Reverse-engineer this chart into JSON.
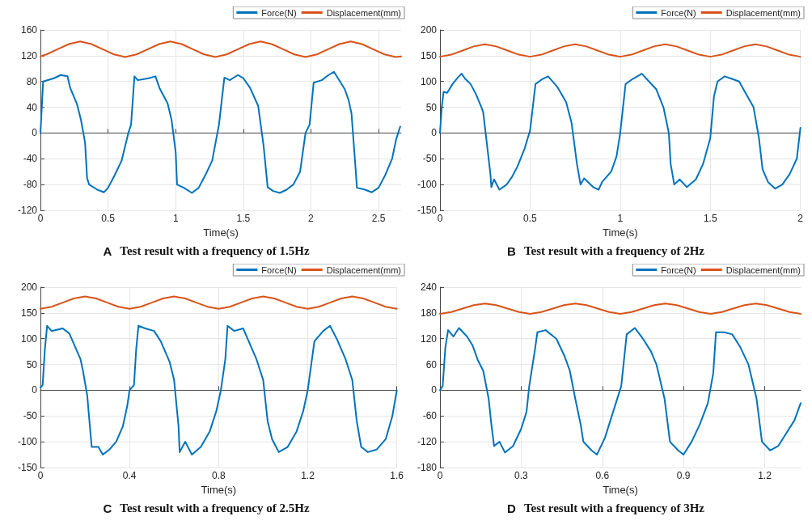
{
  "chart_data": [
    {
      "type": "line",
      "title": "A Test result with a frequency of 1.5Hz",
      "xlabel": "Time(s)",
      "xlim": [
        0,
        2.667
      ],
      "xticks": [
        0,
        0.5,
        1,
        1.5,
        2,
        2.5
      ],
      "ylim": [
        -120,
        160
      ],
      "yticks": [
        -120,
        -80,
        -40,
        0,
        40,
        80,
        120,
        160
      ],
      "grid": true,
      "legend": "top right",
      "marker": "none",
      "line_style": "solid",
      "series": [
        {
          "name": "Force(N)",
          "color": "#0072bd",
          "x": [
            0,
            0.02,
            0.1,
            0.15,
            0.2,
            0.22,
            0.27,
            0.3,
            0.33,
            0.345,
            0.36,
            0.42,
            0.47,
            0.5,
            0.55,
            0.6,
            0.65,
            0.67,
            0.695,
            0.72,
            0.8,
            0.85,
            0.88,
            0.94,
            0.97,
            1.0,
            1.01,
            1.06,
            1.12,
            1.17,
            1.22,
            1.27,
            1.32,
            1.36,
            1.4,
            1.46,
            1.5,
            1.55,
            1.61,
            1.65,
            1.68,
            1.72,
            1.77,
            1.82,
            1.87,
            1.92,
            1.96,
            1.99,
            2.02,
            2.08,
            2.13,
            2.17,
            2.2,
            2.25,
            2.28,
            2.3,
            2.33,
            2.34,
            2.4,
            2.45,
            2.5,
            2.55,
            2.6,
            2.63,
            2.66
          ],
          "values": [
            0,
            80,
            85,
            90,
            88,
            70,
            45,
            20,
            -15,
            -70,
            -80,
            -88,
            -92,
            -85,
            -65,
            -43,
            0,
            13,
            88,
            82,
            85,
            88,
            70,
            46,
            20,
            -30,
            -80,
            -85,
            -93,
            -85,
            -65,
            -43,
            13,
            86,
            82,
            90,
            85,
            70,
            42,
            -20,
            -84,
            -90,
            -93,
            -88,
            -80,
            -60,
            0,
            13,
            78,
            82,
            90,
            95,
            85,
            68,
            50,
            30,
            -55,
            -85,
            -88,
            -92,
            -85,
            -65,
            -40,
            -10,
            10
          ]
        },
        {
          "name": "Displacement(mm)",
          "color": "#d95319",
          "x": [
            0,
            0.044,
            0.127,
            0.21,
            0.294,
            0.377,
            0.46,
            0.544,
            0.627,
            0.71,
            0.794,
            0.877,
            0.96,
            1.044,
            1.127,
            1.21,
            1.294,
            1.377,
            1.46,
            1.544,
            1.627,
            1.71,
            1.794,
            1.877,
            1.96,
            2.044,
            2.127,
            2.21,
            2.294,
            2.377,
            2.46,
            2.544,
            2.627,
            2.667
          ],
          "values": [
            119,
            122,
            130,
            138,
            142,
            138,
            130,
            122,
            118,
            122,
            130,
            138,
            142,
            138,
            130,
            122,
            118,
            122,
            130,
            138,
            142,
            138,
            130,
            122,
            118,
            122,
            130,
            138,
            142,
            138,
            130,
            122,
            118,
            119
          ]
        }
      ]
    },
    {
      "type": "line",
      "title": "B Test result with a frequency of 2Hz",
      "xlabel": "Time(s)",
      "xlim": [
        0,
        2
      ],
      "xticks": [
        0,
        0.5,
        1,
        1.5,
        2
      ],
      "ylim": [
        -150,
        200
      ],
      "yticks": [
        -150,
        -100,
        -50,
        0,
        50,
        100,
        150,
        200
      ],
      "grid": true,
      "legend": "top right",
      "marker": "none",
      "line_style": "solid",
      "series": [
        {
          "name": "Force(N)",
          "color": "#0072bd",
          "x": [
            0,
            0.01,
            0.02,
            0.04,
            0.07,
            0.1,
            0.12,
            0.14,
            0.17,
            0.2,
            0.23,
            0.24,
            0.26,
            0.28,
            0.285,
            0.3,
            0.33,
            0.37,
            0.4,
            0.43,
            0.47,
            0.5,
            0.53,
            0.57,
            0.6,
            0.65,
            0.7,
            0.73,
            0.76,
            0.78,
            0.8,
            0.85,
            0.88,
            0.9,
            0.95,
            0.98,
            1.0,
            1.03,
            1.07,
            1.12,
            1.16,
            1.2,
            1.24,
            1.27,
            1.28,
            1.3,
            1.33,
            1.37,
            1.42,
            1.46,
            1.5,
            1.52,
            1.54,
            1.58,
            1.62,
            1.66,
            1.7,
            1.74,
            1.77,
            1.79,
            1.82,
            1.86,
            1.9,
            1.94,
            1.98,
            2.0
          ],
          "values": [
            0,
            50,
            80,
            78,
            95,
            108,
            115,
            105,
            95,
            75,
            50,
            40,
            -20,
            -80,
            -105,
            -90,
            -110,
            -100,
            -85,
            -65,
            -30,
            5,
            95,
            105,
            110,
            90,
            60,
            20,
            -60,
            -100,
            -88,
            -105,
            -110,
            -95,
            -75,
            -45,
            0,
            95,
            105,
            115,
            100,
            85,
            50,
            0,
            -60,
            -100,
            -90,
            -105,
            -90,
            -60,
            -10,
            70,
            100,
            110,
            105,
            100,
            75,
            50,
            -10,
            -70,
            -95,
            -108,
            -100,
            -80,
            -50,
            10
          ]
        },
        {
          "name": "Displacement(mm)",
          "color": "#d95319",
          "x": [
            0,
            0.0625,
            0.125,
            0.1875,
            0.25,
            0.3125,
            0.375,
            0.4375,
            0.5,
            0.5625,
            0.625,
            0.6875,
            0.75,
            0.8125,
            0.875,
            0.9375,
            1,
            1.0625,
            1.125,
            1.1875,
            1.25,
            1.3125,
            1.375,
            1.4375,
            1.5,
            1.5625,
            1.625,
            1.6875,
            1.75,
            1.8125,
            1.875,
            1.9375,
            2
          ],
          "values": [
            148,
            152,
            160,
            168,
            172,
            168,
            160,
            152,
            148,
            152,
            160,
            168,
            172,
            168,
            160,
            152,
            148,
            152,
            160,
            168,
            172,
            168,
            160,
            152,
            148,
            152,
            160,
            168,
            172,
            168,
            160,
            152,
            148
          ]
        }
      ]
    },
    {
      "type": "line",
      "title": "C Test result with a frequency of 2.5Hz",
      "xlabel": "Time(s)",
      "xlim": [
        0,
        1.6
      ],
      "xticks": [
        0,
        0.4,
        0.8,
        1.2,
        1.6
      ],
      "ylim": [
        -150,
        200
      ],
      "yticks": [
        -150,
        -100,
        -50,
        0,
        50,
        100,
        150,
        200
      ],
      "grid": true,
      "legend": "top right",
      "marker": "none",
      "line_style": "solid",
      "series": [
        {
          "name": "Force(N)",
          "color": "#0072bd",
          "x": [
            0,
            0.01,
            0.02,
            0.03,
            0.05,
            0.1,
            0.13,
            0.15,
            0.18,
            0.19,
            0.21,
            0.22,
            0.23,
            0.26,
            0.28,
            0.31,
            0.34,
            0.37,
            0.39,
            0.4,
            0.42,
            0.43,
            0.44,
            0.47,
            0.51,
            0.54,
            0.58,
            0.6,
            0.62,
            0.625,
            0.65,
            0.68,
            0.72,
            0.76,
            0.79,
            0.81,
            0.83,
            0.84,
            0.87,
            0.91,
            0.94,
            0.97,
            1.0,
            1.02,
            1.04,
            1.07,
            1.11,
            1.15,
            1.18,
            1.2,
            1.23,
            1.27,
            1.3,
            1.33,
            1.37,
            1.4,
            1.42,
            1.44,
            1.47,
            1.51,
            1.55,
            1.58,
            1.6
          ],
          "values": [
            5,
            10,
            80,
            125,
            115,
            120,
            110,
            90,
            60,
            40,
            -10,
            -60,
            -110,
            -110,
            -125,
            -115,
            -100,
            -70,
            -30,
            0,
            10,
            80,
            125,
            120,
            115,
            95,
            55,
            20,
            -70,
            -120,
            -100,
            -125,
            -110,
            -80,
            -40,
            0,
            60,
            125,
            115,
            120,
            90,
            60,
            20,
            -60,
            -95,
            -120,
            -110,
            -80,
            -40,
            0,
            95,
            115,
            125,
            100,
            60,
            20,
            -60,
            -110,
            -120,
            -115,
            -95,
            -50,
            0
          ]
        },
        {
          "name": "Displacement(mm)",
          "color": "#d95319",
          "x": [
            0,
            0.05,
            0.1,
            0.15,
            0.2,
            0.25,
            0.3,
            0.35,
            0.4,
            0.45,
            0.5,
            0.55,
            0.6,
            0.65,
            0.7,
            0.75,
            0.8,
            0.85,
            0.9,
            0.95,
            1.0,
            1.05,
            1.1,
            1.15,
            1.2,
            1.25,
            1.3,
            1.35,
            1.4,
            1.45,
            1.5,
            1.55,
            1.6
          ],
          "values": [
            158,
            162,
            170,
            178,
            182,
            178,
            170,
            162,
            158,
            162,
            170,
            178,
            182,
            178,
            170,
            162,
            158,
            162,
            170,
            178,
            182,
            178,
            170,
            162,
            158,
            162,
            170,
            178,
            182,
            178,
            170,
            162,
            158
          ]
        }
      ]
    },
    {
      "type": "line",
      "title": "D Test result with a frequency of 3Hz",
      "xlabel": "Time(s)",
      "xlim": [
        0,
        1.333
      ],
      "xticks": [
        0,
        0.3,
        0.6,
        0.9,
        1.2
      ],
      "ylim": [
        -180,
        240
      ],
      "yticks": [
        -180,
        -120,
        -60,
        0,
        60,
        120,
        180,
        240
      ],
      "grid": true,
      "legend": "top right",
      "marker": "none",
      "line_style": "solid",
      "series": [
        {
          "name": "Force(N)",
          "color": "#0072bd",
          "x": [
            0,
            0.01,
            0.02,
            0.03,
            0.05,
            0.07,
            0.1,
            0.12,
            0.14,
            0.16,
            0.18,
            0.19,
            0.2,
            0.22,
            0.24,
            0.27,
            0.3,
            0.32,
            0.33,
            0.35,
            0.36,
            0.39,
            0.43,
            0.46,
            0.48,
            0.5,
            0.52,
            0.53,
            0.56,
            0.58,
            0.61,
            0.63,
            0.65,
            0.67,
            0.69,
            0.72,
            0.75,
            0.78,
            0.8,
            0.83,
            0.85,
            0.88,
            0.9,
            0.93,
            0.96,
            0.99,
            1.01,
            1.02,
            1.05,
            1.08,
            1.11,
            1.14,
            1.17,
            1.19,
            1.22,
            1.25,
            1.28,
            1.31,
            1.333
          ],
          "values": [
            0,
            10,
            100,
            140,
            125,
            145,
            125,
            105,
            70,
            45,
            -20,
            -80,
            -130,
            -120,
            -145,
            -130,
            -90,
            -50,
            10,
            90,
            135,
            140,
            120,
            80,
            45,
            -20,
            -80,
            -120,
            -140,
            -150,
            -110,
            -70,
            -30,
            10,
            130,
            145,
            120,
            90,
            60,
            -20,
            -120,
            -140,
            -150,
            -120,
            -80,
            -30,
            40,
            135,
            135,
            130,
            100,
            60,
            -20,
            -120,
            -140,
            -130,
            -100,
            -70,
            -30
          ]
        },
        {
          "name": "Displacement(mm)",
          "color": "#d95319",
          "x": [
            0,
            0.042,
            0.083,
            0.125,
            0.167,
            0.208,
            0.25,
            0.292,
            0.333,
            0.375,
            0.417,
            0.458,
            0.5,
            0.542,
            0.583,
            0.625,
            0.667,
            0.708,
            0.75,
            0.792,
            0.833,
            0.875,
            0.917,
            0.958,
            1.0,
            1.042,
            1.083,
            1.125,
            1.167,
            1.208,
            1.25,
            1.292,
            1.333
          ],
          "values": [
            178,
            182,
            190,
            198,
            202,
            198,
            190,
            182,
            178,
            182,
            190,
            198,
            202,
            198,
            190,
            182,
            178,
            182,
            190,
            198,
            202,
            198,
            190,
            182,
            178,
            182,
            190,
            198,
            202,
            198,
            190,
            182,
            178
          ]
        }
      ]
    }
  ]
}
